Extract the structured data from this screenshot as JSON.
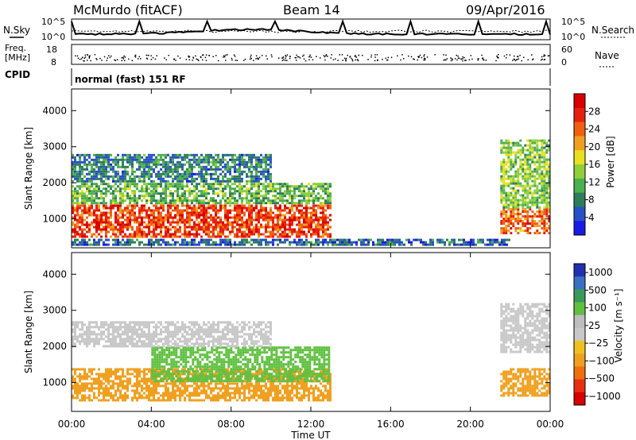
{
  "header": {
    "station": "McMurdo (fitACF)",
    "beam": "Beam 14",
    "date": "09/Apr/2016"
  },
  "top_panels": {
    "nsky_label": "N.Sky",
    "nsky_ticks": [
      "10^5",
      "10^0"
    ],
    "nsearch_label": "N.Search",
    "nsearch_ticks": [
      "10^5",
      "10^0"
    ],
    "freq_label": "Freq.",
    "freq_unit": "[MHz]",
    "freq_ticks": [
      "18",
      "8"
    ],
    "nave_label": "Nave",
    "nave_ticks": [
      "60",
      "0"
    ],
    "cpid_label": "CPID",
    "cpid_text": "normal (fast) 151 RF"
  },
  "colors": {
    "power": [
      "#1a1ae6",
      "#2850c8",
      "#2e7d5a",
      "#4caf50",
      "#8fcf3a",
      "#e8e020",
      "#f0a020",
      "#f06010",
      "#e82010",
      "#d80000"
    ],
    "velocity": [
      "#2030b0",
      "#3a70c0",
      "#3a9a5a",
      "#5fc040",
      "#bdbdbd",
      "#c8c8c8",
      "#f0c020",
      "#f0a020",
      "#f07010",
      "#e83010",
      "#d80000"
    ]
  },
  "chart_data": [
    {
      "type": "heatmap",
      "name": "power",
      "xlabel": "",
      "ylabel": "Slant Range [km]",
      "x_ticks": [
        "00:00",
        "04:00",
        "08:00",
        "12:00",
        "16:00",
        "20:00",
        "00:00"
      ],
      "y_ticks": [
        "1000",
        "2000",
        "3000",
        "4000"
      ],
      "xlim": [
        0,
        24
      ],
      "ylim": [
        200,
        4600
      ],
      "colorbar": {
        "label": "Power [dB]",
        "ticks": [
          "4",
          "8",
          "12",
          "16",
          "20",
          "24",
          "28"
        ],
        "range": [
          0,
          32
        ]
      },
      "regions": [
        {
          "t0": 0.0,
          "t1": 13.0,
          "r0": 500,
          "r1": 1400,
          "value": 26
        },
        {
          "t0": 0.0,
          "t1": 13.0,
          "r0": 1400,
          "r1": 2000,
          "value": 12
        },
        {
          "t0": 0.0,
          "t1": 10.0,
          "r0": 2000,
          "r1": 2800,
          "value": 8
        },
        {
          "t0": 21.5,
          "t1": 24.0,
          "r0": 600,
          "r1": 1300,
          "value": 24
        },
        {
          "t0": 21.5,
          "t1": 24.0,
          "r0": 1300,
          "r1": 3200,
          "value": 14
        },
        {
          "t0": 0.0,
          "t1": 22.0,
          "r0": 250,
          "r1": 450,
          "value": 6
        }
      ]
    },
    {
      "type": "heatmap",
      "name": "velocity",
      "xlabel": "Time UT",
      "ylabel": "Slant Range [km]",
      "x_ticks": [
        "00:00",
        "04:00",
        "08:00",
        "12:00",
        "16:00",
        "20:00",
        "00:00"
      ],
      "y_ticks": [
        "1000",
        "2000",
        "3000",
        "4000"
      ],
      "xlim": [
        0,
        24
      ],
      "ylim": [
        200,
        4600
      ],
      "colorbar": {
        "label": "Velocity [m s⁻¹]",
        "ticks": [
          "1000",
          "500",
          "100",
          "25",
          "−25",
          "−100",
          "−500",
          "−1000"
        ]
      },
      "regions": [
        {
          "t0": 0.0,
          "t1": 13.0,
          "r0": 500,
          "r1": 1400,
          "value": -100
        },
        {
          "t0": 4.0,
          "t1": 13.0,
          "r0": 1000,
          "r1": 2000,
          "value": 100
        },
        {
          "t0": 0.0,
          "t1": 10.0,
          "r0": 2000,
          "r1": 2700,
          "value": 0
        },
        {
          "t0": 21.5,
          "t1": 24.0,
          "r0": 600,
          "r1": 1400,
          "value": -100
        },
        {
          "t0": 21.5,
          "t1": 24.0,
          "r0": 1800,
          "r1": 3200,
          "value": 0
        }
      ]
    }
  ]
}
